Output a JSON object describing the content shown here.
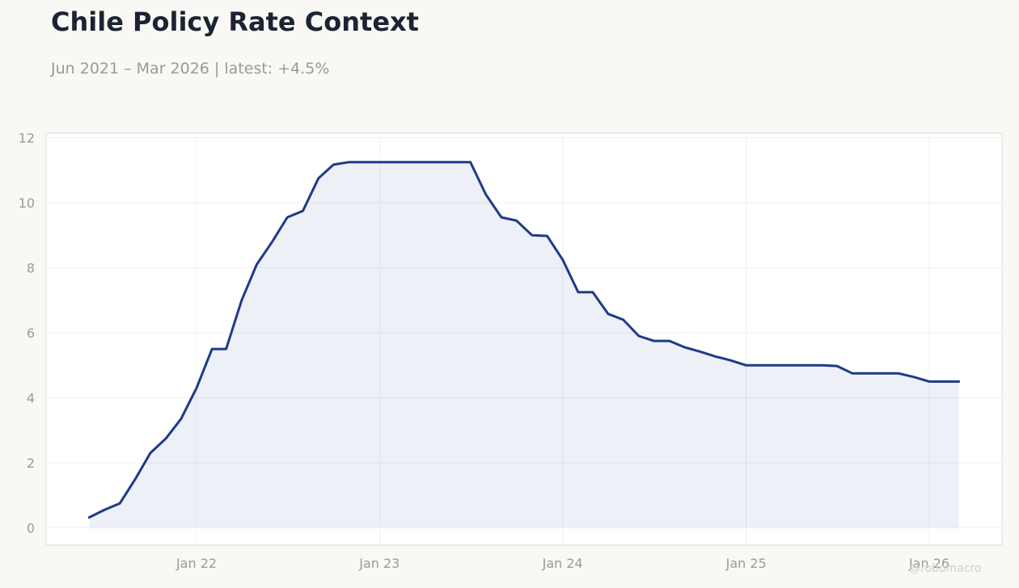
{
  "header": {
    "title": "Chile Policy Rate Context",
    "subtitle": "Jun 2021 – Mar 2026 | latest: +4.5%"
  },
  "watermark": "@robomacro",
  "colors": {
    "background": "#f9f8f5",
    "plot_background": "#ffffff",
    "line": "#1f3a8a",
    "fill": "rgba(31,58,138,0.08)",
    "grid": "#ececec",
    "tick_label": "#9a9a96"
  },
  "chart_data": {
    "type": "area",
    "title": "Chile Policy Rate Context",
    "subtitle": "Jun 2021 – Mar 2026 | latest: +4.5%",
    "xlabel": "",
    "ylabel": "",
    "ylim": [
      -0.5,
      12.2
    ],
    "xlim": [
      "2021-03-22",
      "2026-05-10"
    ],
    "yticks": [
      0,
      2,
      4,
      6,
      8,
      10,
      12
    ],
    "xticks": [
      {
        "date": "2022-01-01",
        "label": "Jan 22"
      },
      {
        "date": "2023-01-01",
        "label": "Jan 23"
      },
      {
        "date": "2024-01-01",
        "label": "Jan 24"
      },
      {
        "date": "2025-01-01",
        "label": "Jan 25"
      },
      {
        "date": "2026-01-01",
        "label": "Jan 26"
      }
    ],
    "grid": true,
    "series": [
      {
        "points": [
          [
            "2021-06-01",
            0.32
          ],
          [
            "2021-07-01",
            0.55
          ],
          [
            "2021-08-01",
            0.75
          ],
          [
            "2021-09-01",
            1.5
          ],
          [
            "2021-10-01",
            2.3
          ],
          [
            "2021-11-01",
            2.75
          ],
          [
            "2021-12-01",
            3.35
          ],
          [
            "2022-01-01",
            4.3
          ],
          [
            "2022-02-01",
            5.5
          ],
          [
            "2022-03-01",
            5.5
          ],
          [
            "2022-04-01",
            7.0
          ],
          [
            "2022-05-01",
            8.1
          ],
          [
            "2022-06-01",
            8.8
          ],
          [
            "2022-07-01",
            9.55
          ],
          [
            "2022-08-01",
            9.75
          ],
          [
            "2022-09-01",
            10.75
          ],
          [
            "2022-10-01",
            11.17
          ],
          [
            "2022-11-01",
            11.25
          ],
          [
            "2022-12-01",
            11.25
          ],
          [
            "2023-01-01",
            11.25
          ],
          [
            "2023-02-01",
            11.25
          ],
          [
            "2023-03-01",
            11.25
          ],
          [
            "2023-04-01",
            11.25
          ],
          [
            "2023-05-01",
            11.25
          ],
          [
            "2023-06-01",
            11.25
          ],
          [
            "2023-07-01",
            11.25
          ],
          [
            "2023-08-01",
            10.25
          ],
          [
            "2023-09-01",
            9.55
          ],
          [
            "2023-10-01",
            9.45
          ],
          [
            "2023-11-01",
            9.0
          ],
          [
            "2023-12-01",
            8.98
          ],
          [
            "2024-01-01",
            8.25
          ],
          [
            "2024-02-01",
            7.25
          ],
          [
            "2024-03-01",
            7.25
          ],
          [
            "2024-04-01",
            6.58
          ],
          [
            "2024-05-01",
            6.4
          ],
          [
            "2024-06-01",
            5.9
          ],
          [
            "2024-07-01",
            5.75
          ],
          [
            "2024-08-01",
            5.75
          ],
          [
            "2024-09-01",
            5.55
          ],
          [
            "2024-10-01",
            5.42
          ],
          [
            "2024-11-01",
            5.27
          ],
          [
            "2024-12-01",
            5.15
          ],
          [
            "2025-01-01",
            5.0
          ],
          [
            "2025-02-01",
            5.0
          ],
          [
            "2025-03-01",
            5.0
          ],
          [
            "2025-04-01",
            5.0
          ],
          [
            "2025-05-01",
            5.0
          ],
          [
            "2025-06-01",
            5.0
          ],
          [
            "2025-07-01",
            4.98
          ],
          [
            "2025-08-01",
            4.75
          ],
          [
            "2025-09-01",
            4.75
          ],
          [
            "2025-10-01",
            4.75
          ],
          [
            "2025-11-01",
            4.75
          ],
          [
            "2025-12-01",
            4.64
          ],
          [
            "2026-01-01",
            4.5
          ],
          [
            "2026-02-01",
            4.5
          ],
          [
            "2026-03-01",
            4.5
          ]
        ]
      }
    ]
  }
}
